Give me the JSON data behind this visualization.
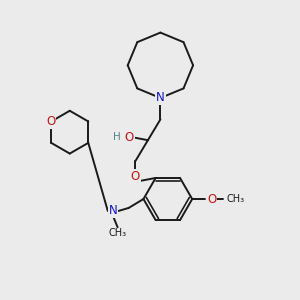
{
  "background_color": "#ebebeb",
  "bond_color": "#1a1a1a",
  "bond_width": 1.4,
  "N_color": "#1414cc",
  "O_color": "#cc1414",
  "H_color": "#4a8888",
  "font_size": 8.5,
  "figsize": [
    3.0,
    3.0
  ],
  "dpi": 100,
  "xlim": [
    0,
    10
  ],
  "ylim": [
    0,
    10
  ]
}
